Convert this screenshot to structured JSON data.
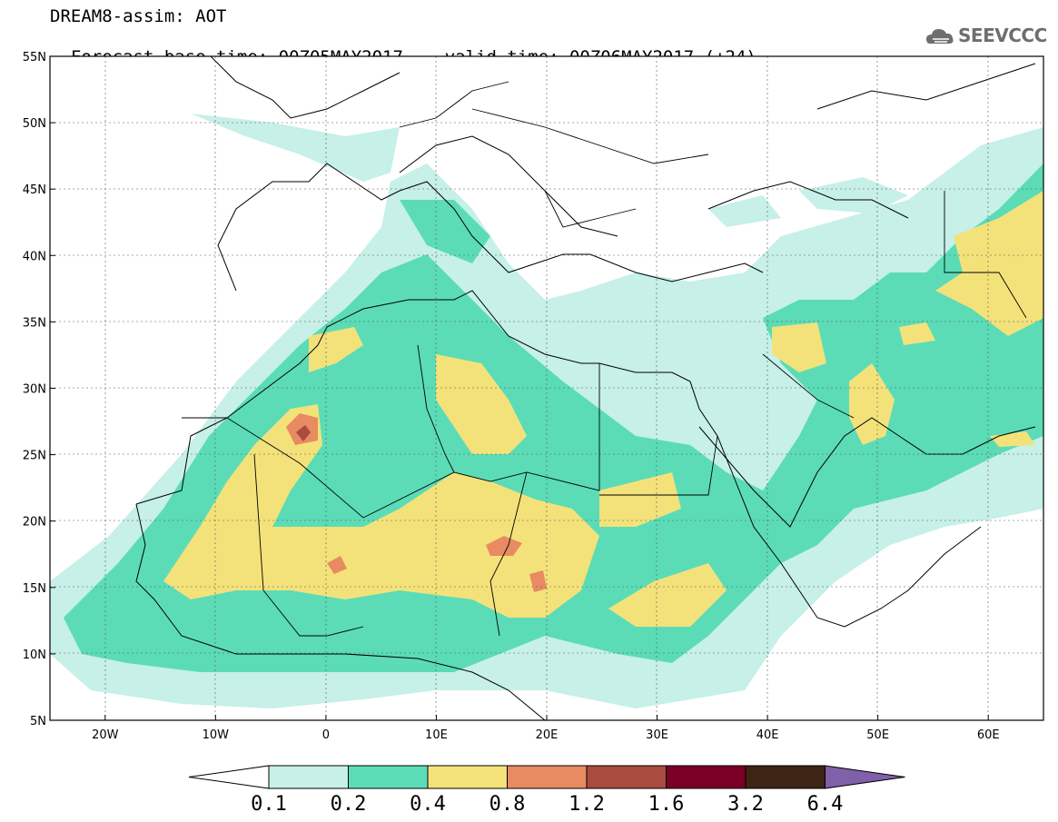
{
  "header": {
    "title_line1": "DREAM8-assim: AOT",
    "base_time_label": "Forecast base time: 00Z05MAY2017",
    "valid_time_label": "valid time: 00Z06MAY2017 (+24)"
  },
  "logo": {
    "text": "SEEVCCC",
    "icon": "cloud-logo-icon"
  },
  "map": {
    "lat_labels": [
      "55N",
      "50N",
      "45N",
      "40N",
      "35N",
      "30N",
      "25N",
      "20N",
      "15N",
      "10N",
      "5N"
    ],
    "lon_labels": [
      "20W",
      "10W",
      "0",
      "10E",
      "20E",
      "30E",
      "40E",
      "50E",
      "60E"
    ],
    "extent": {
      "lon_min": -25,
      "lon_max": 65,
      "lat_min": 5,
      "lat_max": 55
    }
  },
  "colorbar": {
    "levels": [
      "0.1",
      "0.2",
      "0.4",
      "0.8",
      "1.2",
      "1.6",
      "3.2",
      "6.4"
    ],
    "colors": [
      "#ffffff",
      "#c6f0e8",
      "#5bdcb7",
      "#f3e27a",
      "#e88a62",
      "#a94b3e",
      "#7a0025",
      "#3d2414",
      "#8060a8"
    ]
  }
}
